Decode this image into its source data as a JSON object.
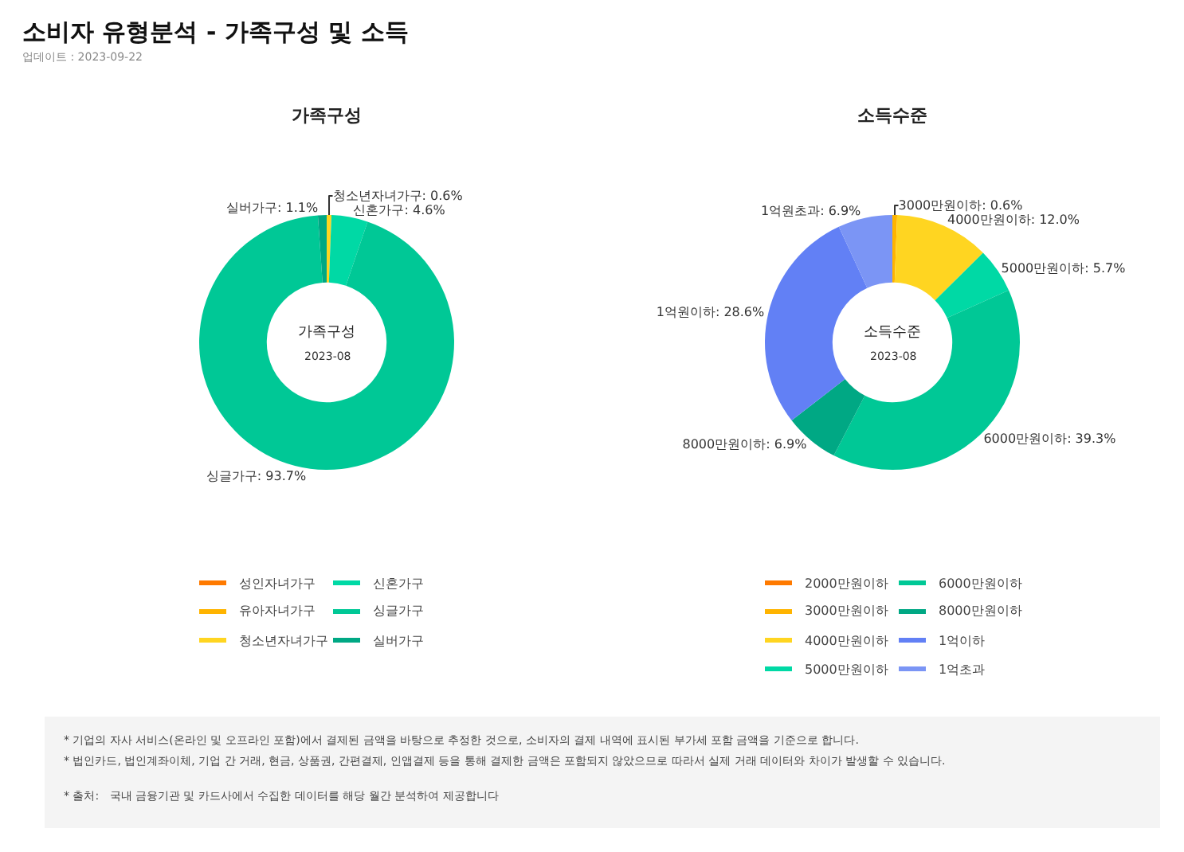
{
  "chart_data": [
    {
      "type": "donut",
      "title": "가족구성",
      "categories": [
        "성인자녀가구",
        "유아자녀가구",
        "청소년자녀가구",
        "신혼가구",
        "싱글가구",
        "실버가구"
      ],
      "values": [
        0,
        0,
        0.6,
        4.6,
        93.7,
        1.1
      ],
      "colors": [
        "#ff7a00",
        "#ffb400",
        "#ffd521",
        "#00d9a5",
        "#00c896",
        "#00a884"
      ],
      "value_labels": [
        null,
        null,
        "청소년자녀가구: 0.6%",
        "신혼가구: 4.6%",
        "싱글가구: 93.7%",
        "실버가구: 1.1%"
      ],
      "legend": "bottom",
      "annotations": [
        "소비자 유형분석 - 가족구성 및 소득",
        "업데이트 : 2023-09-22",
        "가족구성",
        "2023-08"
      ]
    },
    {
      "type": "donut",
      "title": "소득수준",
      "categories": [
        "2000만원이하",
        "3000만원이하",
        "4000만원이하",
        "5000만원이하",
        "6000만원이하",
        "8000만원이하",
        "1억이하",
        "1억초과"
      ],
      "values": [
        0,
        0.6,
        12.0,
        5.7,
        39.3,
        6.9,
        28.6,
        6.9
      ],
      "colors": [
        "#ff7a00",
        "#ffb400",
        "#ffd521",
        "#00d9a5",
        "#00c896",
        "#00a884",
        "#6280f5",
        "#7b95f5"
      ],
      "value_labels": [
        null,
        "3000만원이하: 0.6%",
        "4000만원이하: 12.0%",
        "5000만원이하: 5.7%",
        "6000만원이하: 39.3%",
        "8000만원이하: 6.9%",
        "1억원이하: 28.6%",
        "1억원초과: 6.9%"
      ],
      "legend": "bottom",
      "annotations": [
        "소득수준",
        "2023-08",
        "* 기업의 자사 서비스(온라인 및 오프라인 포함)에서 결제된 금액을 바탕으로 추정한 것으로, 소비자의 결제 내역에 표시된 부가세 포함 금액을 기준으로 합니다.",
        "* 법인카드, 법인계좌이체, 기업 간 거래, 현금, 상품권, 간편결제, 인앱결제 등을 통해 결제한 금액은 포함되지 않았으므로 따라서 실제 거래 데이터와 차이가 발생할 수 있습니다.",
        "* 출처:   국내 금융기관 및 카드사에서 수집한 데이터를 해당 월간 분석하여 제공합니다"
      ]
    }
  ]
}
